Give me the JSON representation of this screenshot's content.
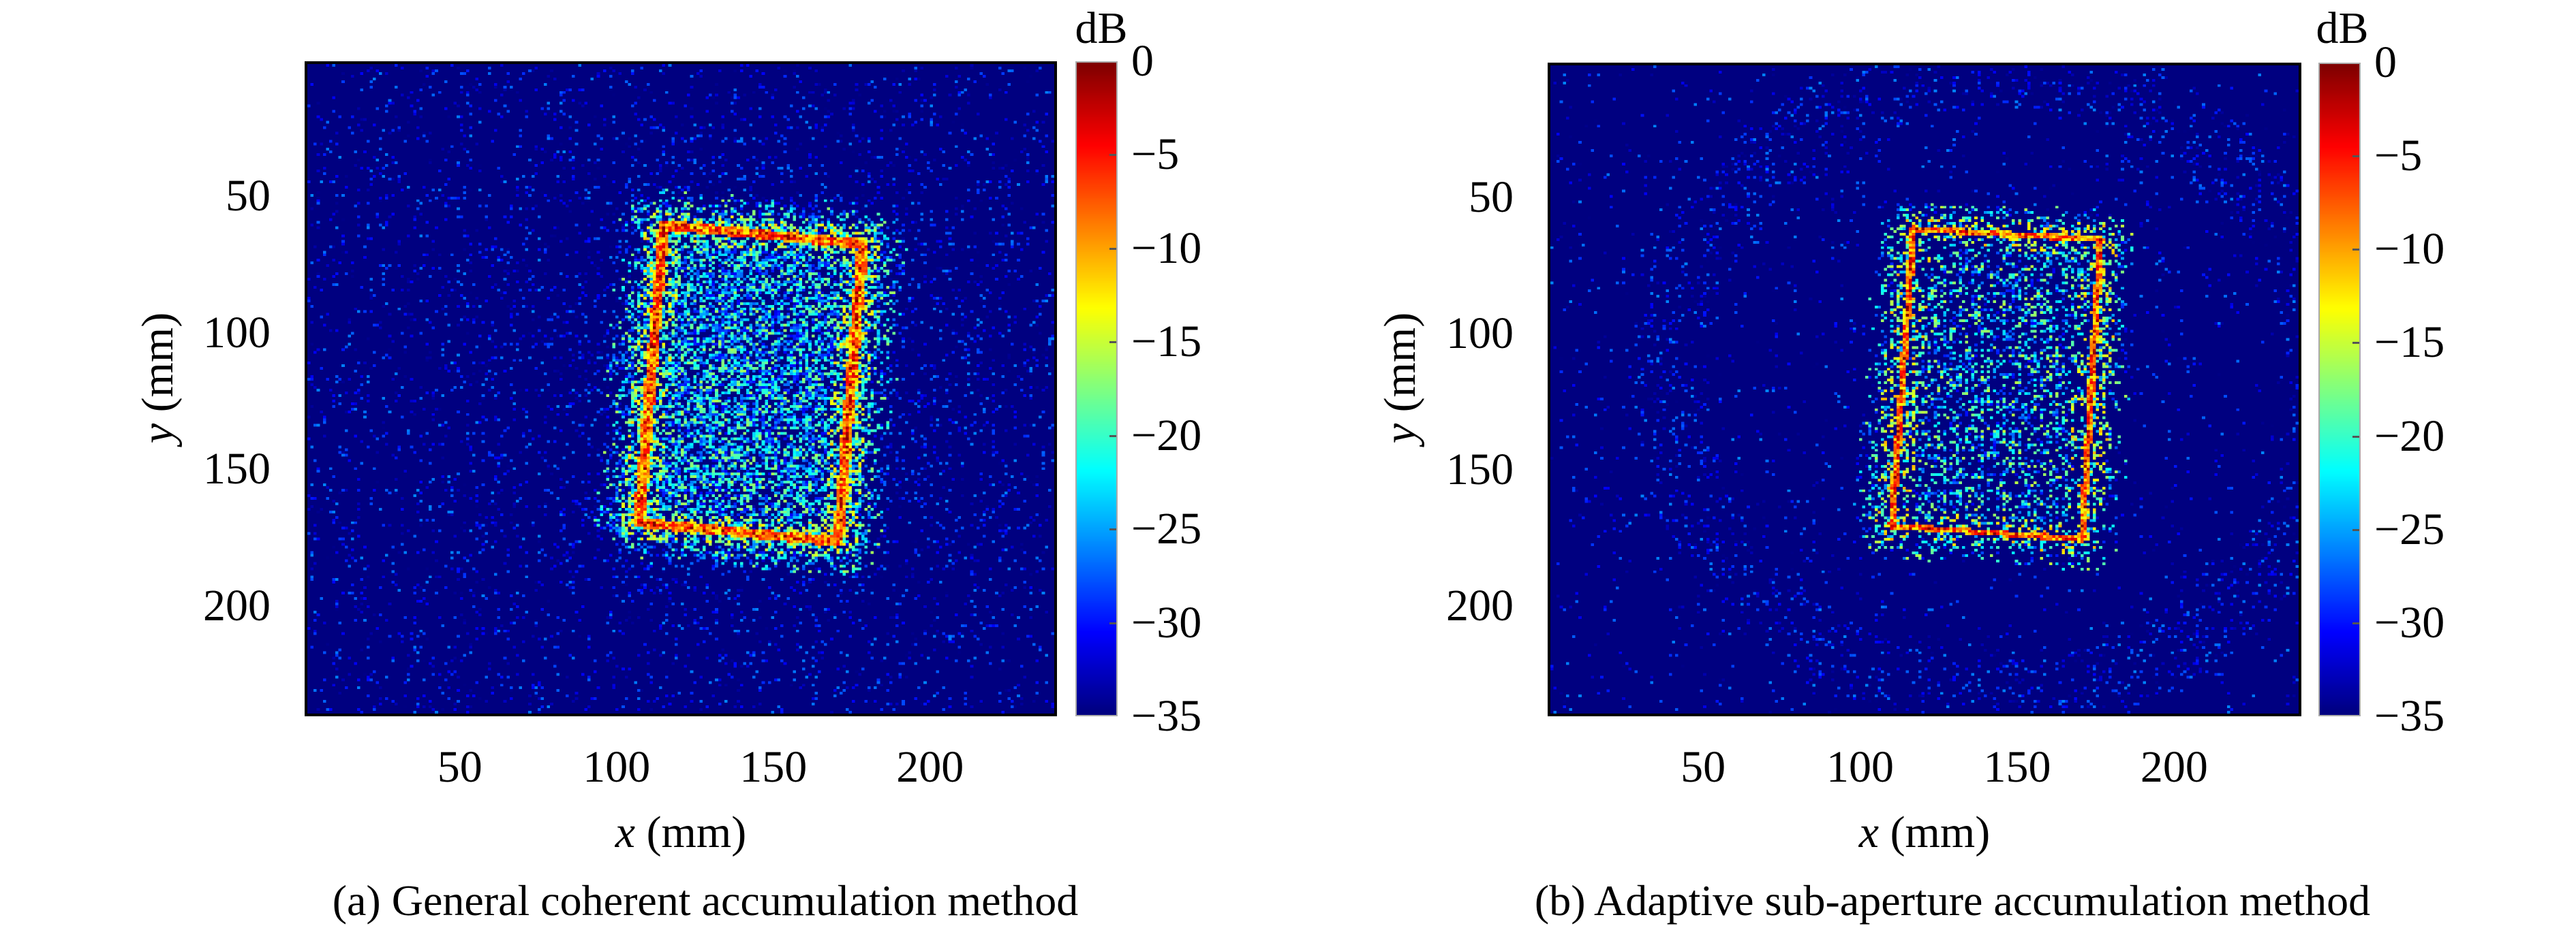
{
  "chart_data": [
    {
      "type": "heatmap",
      "caption": "(a) General coherent accumulation method",
      "xlabel_var": "x",
      "xlabel_unit": "(mm)",
      "ylabel_var": "y",
      "ylabel_unit": "(mm)",
      "xlim": [
        0.5,
        240.5
      ],
      "ylim": [
        0.5,
        240.5
      ],
      "y_reversed": true,
      "xticks": [
        50,
        100,
        150,
        200
      ],
      "yticks": [
        50,
        100,
        150,
        200
      ],
      "colorbar": {
        "label": "dB",
        "clim": [
          -35,
          0
        ],
        "colormap": "jet",
        "ticks": [
          0,
          -5,
          -10,
          -15,
          -20,
          -25,
          -30,
          -35
        ],
        "tick_labels": [
          "0",
          "−5",
          "−10",
          "−15",
          "−20",
          "−25",
          "−30",
          "−35"
        ]
      },
      "background_db": -35,
      "target_outline_mm": [
        [
          115,
          60
        ],
        [
          179,
          67
        ],
        [
          171,
          177
        ],
        [
          107,
          170
        ]
      ],
      "style": "blurred"
    },
    {
      "type": "heatmap",
      "caption": "(b) Adaptive sub-aperture accumulation method",
      "xlabel_var": "x",
      "xlabel_unit": "(mm)",
      "ylabel_var": "y",
      "ylabel_unit": "(mm)",
      "xlim": [
        0.5,
        240.5
      ],
      "ylim": [
        0.5,
        240.5
      ],
      "y_reversed": true,
      "xticks": [
        50,
        100,
        150,
        200
      ],
      "yticks": [
        50,
        100,
        150,
        200
      ],
      "colorbar": {
        "label": "dB",
        "clim": [
          -35,
          0
        ],
        "colormap": "jet",
        "ticks": [
          0,
          -5,
          -10,
          -15,
          -20,
          -25,
          -30,
          -35
        ],
        "tick_labels": [
          "0",
          "−5",
          "−10",
          "−15",
          "−20",
          "−25",
          "−30",
          "−35"
        ]
      },
      "background_db": -35,
      "target_outline_mm": [
        [
          117,
          61
        ],
        [
          177,
          65
        ],
        [
          171,
          176
        ],
        [
          110,
          171
        ]
      ],
      "style": "sharp-streaked"
    }
  ]
}
